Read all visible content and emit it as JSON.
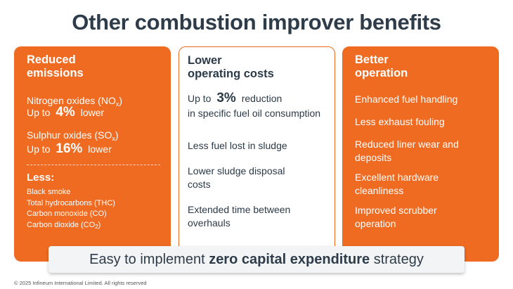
{
  "title": "Other combustion improver benefits",
  "left_card": {
    "title_line1": "Reduced",
    "title_line2": "emissions",
    "nox": {
      "label": "Nitrogen oxides (NO",
      "sub": "x",
      "close": ")",
      "prefix": "Up to",
      "value": "4%",
      "suffix": "lower"
    },
    "sox": {
      "label": "Sulphur oxides (SO",
      "sub": "x",
      "close": ")",
      "prefix": "Up to",
      "value": "16%",
      "suffix": "lower"
    },
    "less_title": "Less:",
    "less_items": [
      "Black smoke",
      "Total hydrocarbons (THC)",
      "Carbon monoxide (CO)",
      "Carbon dioxide (CO",
      "2",
      ")"
    ]
  },
  "mid_card": {
    "title_line1": "Lower",
    "title_line2": "operating costs",
    "item1_prefix": "Up to",
    "item1_value": "3%",
    "item1_suffix": "reduction",
    "item1_line2": "in specific fuel oil consumption",
    "item2": "Less fuel lost in sludge",
    "item3_line1": "Lower sludge disposal",
    "item3_line2": "costs",
    "item4_line1": "Extended time between",
    "item4_line2": "overhauls"
  },
  "right_card": {
    "title_line1": "Better",
    "title_line2": "operation",
    "items": [
      [
        "Enhanced fuel handling"
      ],
      [
        "Less exhaust fouling"
      ],
      [
        "Reduced liner wear and",
        "deposits"
      ],
      [
        "Excellent hardware",
        "cleanliness"
      ],
      [
        "Improved scrubber",
        "operation"
      ]
    ]
  },
  "bottom_bar": {
    "pre": "Easy to implement",
    "bold": "zero capital expenditure",
    "post": "strategy"
  },
  "footer": "© 2025 Infineum International Limited. All rights reserved",
  "colors": {
    "accent": "#ef6b22",
    "title": "#2e3c4a",
    "bar_bg": "#f3f4f5"
  }
}
